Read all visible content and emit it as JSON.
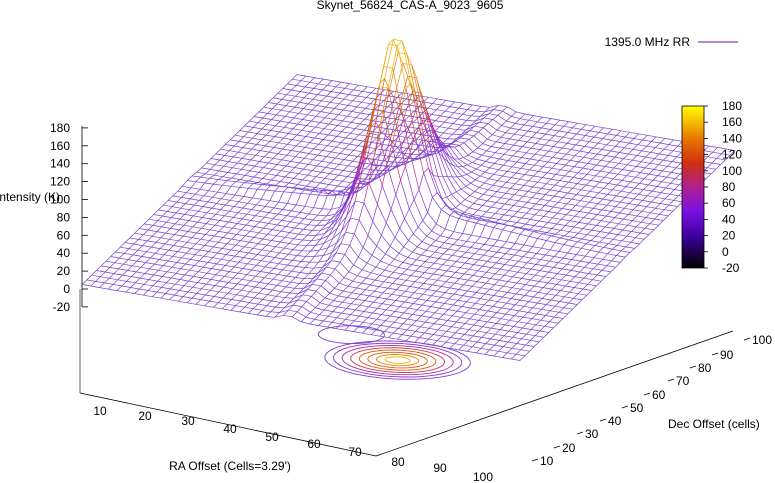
{
  "chart_data": {
    "type": "surface3d",
    "title": "Skynet_56824_CAS-A_9023_9605",
    "legend": {
      "label": "1395.0 MHz RR",
      "color": "#7a3fd1",
      "placement": "top-right"
    },
    "xlabel": "RA Offset (Cells=3.29')",
    "ylabel": "Dec Offset (cells)",
    "zlabel": "Intensity (K)",
    "xlim": [
      0,
      100
    ],
    "ylim": [
      10,
      100
    ],
    "zlim": [
      -20,
      180
    ],
    "x_ticks": [
      "10",
      "20",
      "30",
      "40",
      "50",
      "60",
      "70",
      "80",
      "90",
      "100"
    ],
    "y_ticks": [
      "10",
      "20",
      "30",
      "40",
      "50",
      "60",
      "70",
      "80",
      "90",
      "100"
    ],
    "z_ticks": [
      "180",
      "160",
      "140",
      "120",
      "100",
      "80",
      "60",
      "40",
      "20",
      "0",
      "-20"
    ],
    "colorbar": {
      "ticks": [
        "180",
        "160",
        "140",
        "120",
        "100",
        "80",
        "60",
        "40",
        "20",
        "0",
        "-20"
      ],
      "range": [
        -20,
        180
      ],
      "colors": [
        "#000000",
        "#5a00c8",
        "#9a20d8",
        "#c82020",
        "#e06000",
        "#ffff00"
      ]
    },
    "peak": {
      "x": 47,
      "y": 55,
      "z": 175
    },
    "baseline_level": 5,
    "contour_levels": [
      20,
      40,
      60,
      80,
      100,
      120,
      140,
      160
    ]
  }
}
